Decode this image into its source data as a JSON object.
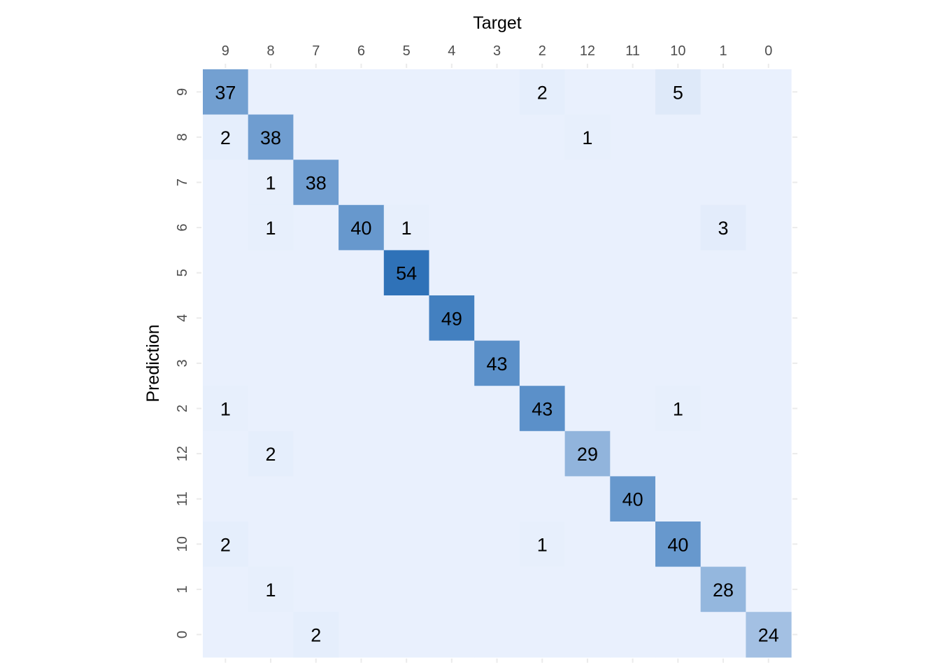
{
  "chart_data": {
    "type": "heatmap",
    "title": "",
    "xlabel": "Target",
    "ylabel": "Prediction",
    "x_categories": [
      "9",
      "8",
      "7",
      "6",
      "5",
      "4",
      "3",
      "2",
      "12",
      "11",
      "10",
      "1",
      "0"
    ],
    "y_categories": [
      "9",
      "8",
      "7",
      "6",
      "5",
      "4",
      "3",
      "2",
      "12",
      "11",
      "10",
      "1",
      "0"
    ],
    "values": [
      [
        37,
        0,
        0,
        0,
        0,
        0,
        0,
        2,
        0,
        0,
        5,
        0,
        0
      ],
      [
        2,
        38,
        0,
        0,
        0,
        0,
        0,
        0,
        1,
        0,
        0,
        0,
        0
      ],
      [
        0,
        1,
        38,
        0,
        0,
        0,
        0,
        0,
        0,
        0,
        0,
        0,
        0
      ],
      [
        0,
        1,
        0,
        40,
        1,
        0,
        0,
        0,
        0,
        0,
        0,
        3,
        0
      ],
      [
        0,
        0,
        0,
        0,
        54,
        0,
        0,
        0,
        0,
        0,
        0,
        0,
        0
      ],
      [
        0,
        0,
        0,
        0,
        0,
        49,
        0,
        0,
        0,
        0,
        0,
        0,
        0
      ],
      [
        0,
        0,
        0,
        0,
        0,
        0,
        43,
        0,
        0,
        0,
        0,
        0,
        0
      ],
      [
        1,
        0,
        0,
        0,
        0,
        0,
        0,
        43,
        0,
        0,
        1,
        0,
        0
      ],
      [
        0,
        2,
        0,
        0,
        0,
        0,
        0,
        0,
        29,
        0,
        0,
        0,
        0
      ],
      [
        0,
        0,
        0,
        0,
        0,
        0,
        0,
        0,
        0,
        40,
        0,
        0,
        0
      ],
      [
        2,
        0,
        0,
        0,
        0,
        0,
        0,
        1,
        0,
        0,
        40,
        0,
        0
      ],
      [
        0,
        1,
        0,
        0,
        0,
        0,
        0,
        0,
        0,
        0,
        0,
        28,
        0
      ],
      [
        0,
        0,
        2,
        0,
        0,
        0,
        0,
        0,
        0,
        0,
        0,
        0,
        24
      ]
    ],
    "zero_cell_labels_shown": false,
    "color_scale": {
      "low": "#e9f0fd",
      "high": "#2f72b8"
    },
    "x_axis_position": "top",
    "grid": false,
    "legend": "none"
  }
}
